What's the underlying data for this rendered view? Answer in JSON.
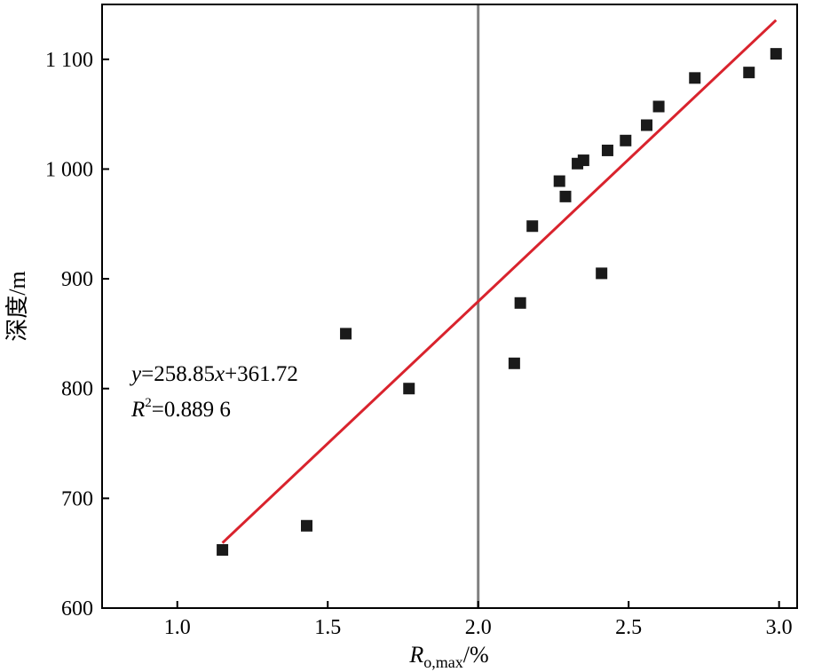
{
  "chart_data": {
    "type": "scatter",
    "xlabel_main": "R",
    "xlabel_sub": "o,max",
    "xlabel_unit": "/%",
    "ylabel": "深度/m",
    "xlim": [
      0.75,
      3.06
    ],
    "ylim": [
      600,
      1150
    ],
    "xticks": [
      1.0,
      1.5,
      2.0,
      2.5,
      3.0
    ],
    "xtick_labels": [
      "1.0",
      "1.5",
      "2.0",
      "2.5",
      "3.0"
    ],
    "yticks": [
      600,
      700,
      800,
      900,
      1000,
      1100
    ],
    "ytick_labels": [
      "600",
      "700",
      "800",
      "900",
      "1 000",
      "1 100"
    ],
    "grid": false,
    "vline_x": 2.0,
    "vline_color": "#808080",
    "fit_line": {
      "x": [
        1.15,
        2.99
      ],
      "color": "#d9232d",
      "slope": 258.85,
      "intercept": 361.72
    },
    "marker_color": "#1a1a1a",
    "equation": {
      "y_var": "y",
      "eq_body": "=258.85",
      "x_var": "x",
      "eq_tail": "+361.72",
      "r_label": "R",
      "r_exp": "2",
      "r_value": "=0.889 6"
    },
    "points": [
      {
        "x": 1.15,
        "y": 653
      },
      {
        "x": 1.43,
        "y": 675
      },
      {
        "x": 1.56,
        "y": 850
      },
      {
        "x": 1.77,
        "y": 800
      },
      {
        "x": 2.12,
        "y": 823
      },
      {
        "x": 2.14,
        "y": 878
      },
      {
        "x": 2.18,
        "y": 948
      },
      {
        "x": 2.27,
        "y": 989
      },
      {
        "x": 2.29,
        "y": 975
      },
      {
        "x": 2.33,
        "y": 1005
      },
      {
        "x": 2.35,
        "y": 1008
      },
      {
        "x": 2.41,
        "y": 905
      },
      {
        "x": 2.43,
        "y": 1017
      },
      {
        "x": 2.49,
        "y": 1026
      },
      {
        "x": 2.56,
        "y": 1040
      },
      {
        "x": 2.6,
        "y": 1057
      },
      {
        "x": 2.72,
        "y": 1083
      },
      {
        "x": 2.9,
        "y": 1088
      },
      {
        "x": 2.99,
        "y": 1105
      }
    ]
  }
}
